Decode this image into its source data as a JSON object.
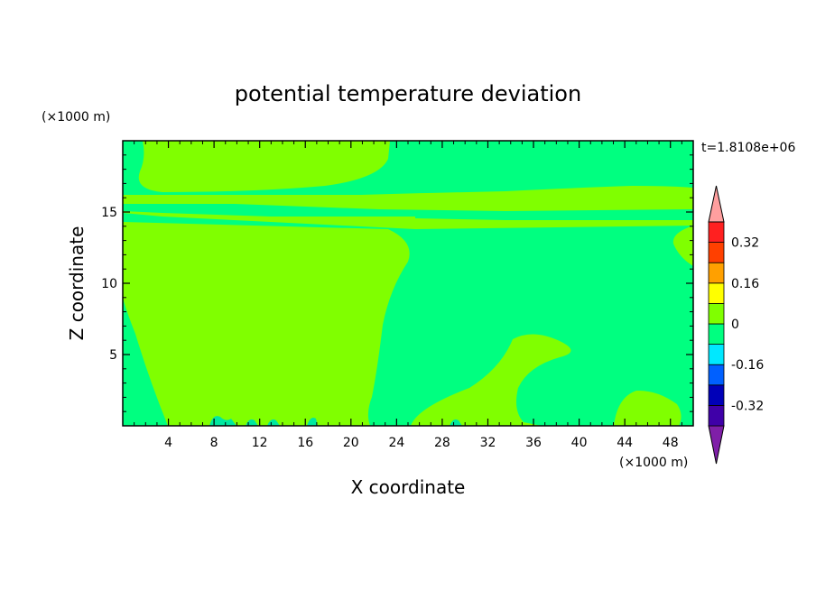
{
  "chart_data": {
    "type": "heatmap",
    "title": "potential temperature deviation",
    "xlabel": "X coordinate",
    "ylabel": "Z coordinate",
    "x_unit": "(×1000 m)",
    "y_unit": "(×1000 m)",
    "time_label": "t=1.8108e+06",
    "xlim": [
      0,
      50
    ],
    "ylim": [
      0,
      20
    ],
    "x_ticks": [
      4,
      8,
      12,
      16,
      20,
      24,
      28,
      32,
      36,
      40,
      44,
      48
    ],
    "y_ticks": [
      5,
      10,
      15
    ],
    "colorbar": {
      "levels": [
        -0.4,
        -0.32,
        -0.24,
        -0.16,
        -0.08,
        0,
        0.08,
        0.16,
        0.24,
        0.32,
        0.4
      ],
      "tick_labels": [
        "0.32",
        "0.16",
        "0",
        "-0.16",
        "-0.32"
      ],
      "tick_values": [
        0.32,
        0.16,
        0,
        -0.16,
        -0.32
      ],
      "colors": [
        "#7f1fa8",
        "#3f00a8",
        "#0000b8",
        "#0060ff",
        "#00e8ff",
        "#00ff80",
        "#80ff00",
        "#ffff00",
        "#ffa000",
        "#ff4000",
        "#ff2020",
        "#ff9f9f"
      ]
    },
    "regions": [
      {
        "name": "background",
        "level_range": [
          -0.08,
          0
        ],
        "color": "#00ff80"
      },
      {
        "name": "upper-left warm band",
        "level_range": [
          0,
          0.08
        ],
        "color": "#80ff00",
        "x": [
          0,
          23.5
        ],
        "z": [
          16.5,
          20
        ]
      },
      {
        "name": "mid-level warm layer",
        "level_range": [
          0,
          0.08
        ],
        "color": "#80ff00",
        "x": [
          0,
          50
        ],
        "z": [
          14,
          16.5
        ]
      },
      {
        "name": "left warm column",
        "level_range": [
          0,
          0.08
        ],
        "color": "#80ff00",
        "x": [
          0,
          25
        ],
        "z": [
          0,
          14
        ]
      },
      {
        "name": "lower-right warm tongue",
        "level_range": [
          0,
          0.08
        ],
        "color": "#80ff00",
        "x": [
          25,
          40
        ],
        "z": [
          0,
          6.5
        ]
      },
      {
        "name": "right warm bump",
        "level_range": [
          0,
          0.08
        ],
        "color": "#80ff00",
        "x": [
          43,
          49
        ],
        "z": [
          0,
          2.5
        ]
      }
    ]
  }
}
